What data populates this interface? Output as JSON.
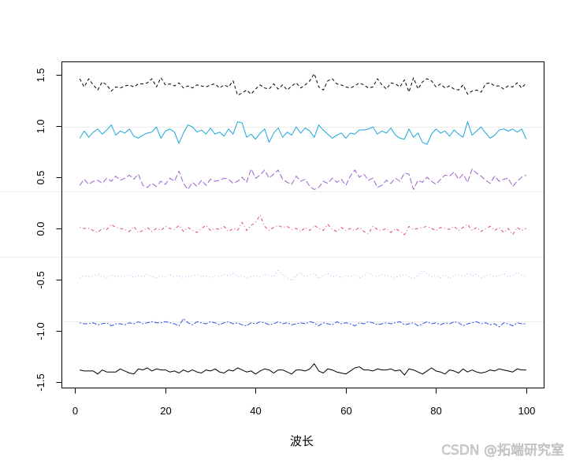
{
  "chart_data": {
    "type": "line",
    "xlabel": "波长",
    "xlim": [
      -2.96,
      103.96
    ],
    "ylim": [
      -1.556,
      1.625
    ],
    "x_ticks": [
      0,
      20,
      40,
      60,
      80,
      100
    ],
    "x_tick_labels": [
      "0",
      "20",
      "40",
      "60",
      "80",
      "100"
    ],
    "y_ticks": [
      -1.5,
      -1,
      -0.5,
      0,
      0.5,
      1,
      1.5
    ],
    "y_tick_labels": [
      "-1.5",
      "-1.0",
      "-0.5",
      "0.0",
      "0.5",
      "1.0",
      "1.5"
    ],
    "grid": false,
    "legend": "none",
    "x": [
      1,
      2,
      3,
      4,
      5,
      6,
      7,
      8,
      9,
      10,
      11,
      12,
      13,
      14,
      15,
      16,
      17,
      18,
      19,
      20,
      21,
      22,
      23,
      24,
      25,
      26,
      27,
      28,
      29,
      30,
      31,
      32,
      33,
      34,
      35,
      36,
      37,
      38,
      39,
      40,
      41,
      42,
      43,
      44,
      45,
      46,
      47,
      48,
      49,
      50,
      51,
      52,
      53,
      54,
      55,
      56,
      57,
      58,
      59,
      60,
      61,
      62,
      63,
      64,
      65,
      66,
      67,
      68,
      69,
      70,
      71,
      72,
      73,
      74,
      75,
      76,
      77,
      78,
      79,
      80,
      81,
      82,
      83,
      84,
      85,
      86,
      87,
      88,
      89,
      90,
      91,
      92,
      93,
      94,
      95,
      96,
      97,
      98,
      99,
      100
    ],
    "series": [
      {
        "color": "#000000",
        "line_style": "dashed",
        "values": [
          1.46,
          1.38,
          1.46,
          1.4,
          1.35,
          1.43,
          1.4,
          1.34,
          1.38,
          1.37,
          1.39,
          1.4,
          1.38,
          1.41,
          1.41,
          1.42,
          1.46,
          1.38,
          1.47,
          1.4,
          1.41,
          1.39,
          1.42,
          1.37,
          1.39,
          1.37,
          1.4,
          1.39,
          1.38,
          1.4,
          1.41,
          1.37,
          1.4,
          1.38,
          1.44,
          1.3,
          1.32,
          1.35,
          1.31,
          1.36,
          1.4,
          1.37,
          1.36,
          1.41,
          1.36,
          1.4,
          1.35,
          1.39,
          1.42,
          1.37,
          1.4,
          1.44,
          1.51,
          1.38,
          1.35,
          1.44,
          1.46,
          1.41,
          1.4,
          1.38,
          1.37,
          1.39,
          1.42,
          1.4,
          1.37,
          1.38,
          1.46,
          1.4,
          1.36,
          1.42,
          1.41,
          1.38,
          1.45,
          1.33,
          1.47,
          1.36,
          1.43,
          1.46,
          1.44,
          1.38,
          1.41,
          1.37,
          1.39,
          1.36,
          1.35,
          1.4,
          1.31,
          1.34,
          1.35,
          1.33,
          1.41,
          1.42,
          1.39,
          1.39,
          1.36,
          1.39,
          1.38,
          1.42,
          1.37,
          1.42
        ]
      },
      {
        "color": "#1aa6da",
        "line_style": "solid",
        "values": [
          0.88,
          0.95,
          0.89,
          0.94,
          0.97,
          0.92,
          0.96,
          1.01,
          0.91,
          0.95,
          0.93,
          0.97,
          0.9,
          0.88,
          0.91,
          0.93,
          0.94,
          0.99,
          0.88,
          0.95,
          0.97,
          0.94,
          0.83,
          0.93,
          1.01,
          0.99,
          0.94,
          0.96,
          0.92,
          0.98,
          0.92,
          0.94,
          0.9,
          0.97,
          0.92,
          1.04,
          1.03,
          0.89,
          0.92,
          0.87,
          0.93,
          0.97,
          0.84,
          0.93,
          0.98,
          0.89,
          0.94,
          0.91,
          0.99,
          0.93,
          0.98,
          0.95,
          0.89,
          1.01,
          0.96,
          0.92,
          0.88,
          0.91,
          0.93,
          0.88,
          0.93,
          0.92,
          0.96,
          0.96,
          0.97,
          0.99,
          0.92,
          0.95,
          0.93,
          0.98,
          0.91,
          0.88,
          0.87,
          0.97,
          0.89,
          0.93,
          0.84,
          0.82,
          0.92,
          0.97,
          0.93,
          0.95,
          0.9,
          0.96,
          0.92,
          0.89,
          1.04,
          0.91,
          0.95,
          0.99,
          0.93,
          0.88,
          0.91,
          0.96,
          0.97,
          0.95,
          0.97,
          0.94,
          0.97,
          0.87
        ]
      },
      {
        "color": "#9a62cf",
        "line_style": "longdash",
        "values": [
          0.42,
          0.48,
          0.43,
          0.46,
          0.47,
          0.44,
          0.49,
          0.46,
          0.51,
          0.47,
          0.49,
          0.52,
          0.48,
          0.53,
          0.42,
          0.4,
          0.44,
          0.41,
          0.46,
          0.43,
          0.49,
          0.46,
          0.56,
          0.44,
          0.38,
          0.45,
          0.41,
          0.47,
          0.42,
          0.48,
          0.46,
          0.47,
          0.49,
          0.48,
          0.44,
          0.46,
          0.5,
          0.45,
          0.58,
          0.49,
          0.52,
          0.57,
          0.49,
          0.53,
          0.57,
          0.48,
          0.45,
          0.43,
          0.51,
          0.46,
          0.48,
          0.41,
          0.38,
          0.4,
          0.46,
          0.44,
          0.49,
          0.45,
          0.48,
          0.42,
          0.51,
          0.57,
          0.5,
          0.53,
          0.47,
          0.49,
          0.4,
          0.42,
          0.47,
          0.44,
          0.49,
          0.46,
          0.54,
          0.53,
          0.38,
          0.47,
          0.45,
          0.5,
          0.46,
          0.43,
          0.48,
          0.52,
          0.51,
          0.55,
          0.48,
          0.53,
          0.45,
          0.58,
          0.54,
          0.51,
          0.47,
          0.44,
          0.51,
          0.46,
          0.48,
          0.49,
          0.41,
          0.46,
          0.5,
          0.52
        ]
      },
      {
        "color": "#e0467c",
        "line_style": "dotdash",
        "values": [
          0.01,
          0.0,
          0.0,
          -0.02,
          -0.04,
          0.0,
          -0.01,
          0.04,
          0.01,
          0.0,
          -0.01,
          -0.03,
          0.02,
          -0.04,
          -0.02,
          0.01,
          -0.03,
          0.0,
          -0.02,
          0.02,
          0.0,
          -0.01,
          0.03,
          -0.03,
          0.01,
          -0.02,
          -0.04,
          0.0,
          0.03,
          -0.02,
          0.0,
          -0.01,
          0.02,
          -0.03,
          0.0,
          -0.02,
          0.06,
          -0.02,
          0.03,
          0.06,
          0.13,
          0.02,
          -0.02,
          0.01,
          0.03,
          0.01,
          0.02,
          -0.01,
          0.0,
          -0.03,
          0.01,
          -0.02,
          0.03,
          0.0,
          -0.02,
          0.04,
          -0.01,
          -0.03,
          0.01,
          -0.02,
          0.0,
          -0.02,
          0.01,
          -0.03,
          -0.05,
          0.02,
          -0.01,
          -0.02,
          0.0,
          -0.04,
          0.0,
          -0.03,
          -0.06,
          0.02,
          -0.01,
          0.0,
          0.01,
          0.02,
          0.0,
          -0.02,
          0.01,
          0.0,
          -0.01,
          0.02,
          -0.02,
          0.01,
          0.04,
          -0.02,
          0.01,
          -0.03,
          0.0,
          0.02,
          -0.02,
          0.01,
          -0.04,
          0.0,
          -0.06,
          0.01,
          -0.02,
          0.0
        ]
      },
      {
        "color": "#a3b5f3",
        "line_style": "dotted",
        "values": [
          -0.48,
          -0.46,
          -0.47,
          -0.46,
          -0.45,
          -0.47,
          -0.48,
          -0.45,
          -0.47,
          -0.46,
          -0.47,
          -0.45,
          -0.48,
          -0.46,
          -0.47,
          -0.45,
          -0.47,
          -0.48,
          -0.46,
          -0.47,
          -0.45,
          -0.47,
          -0.46,
          -0.48,
          -0.47,
          -0.46,
          -0.45,
          -0.47,
          -0.46,
          -0.48,
          -0.46,
          -0.47,
          -0.45,
          -0.46,
          -0.44,
          -0.47,
          -0.46,
          -0.48,
          -0.47,
          -0.46,
          -0.47,
          -0.45,
          -0.46,
          -0.47,
          -0.41,
          -0.45,
          -0.48,
          -0.51,
          -0.46,
          -0.43,
          -0.47,
          -0.45,
          -0.44,
          -0.49,
          -0.46,
          -0.44,
          -0.47,
          -0.46,
          -0.48,
          -0.46,
          -0.47,
          -0.45,
          -0.48,
          -0.46,
          -0.43,
          -0.46,
          -0.47,
          -0.45,
          -0.46,
          -0.47,
          -0.48,
          -0.46,
          -0.45,
          -0.47,
          -0.49,
          -0.46,
          -0.41,
          -0.44,
          -0.47,
          -0.46,
          -0.48,
          -0.45,
          -0.49,
          -0.46,
          -0.45,
          -0.47,
          -0.44,
          -0.46,
          -0.45,
          -0.48,
          -0.46,
          -0.45,
          -0.47,
          -0.46,
          -0.44,
          -0.47,
          -0.46,
          -0.43,
          -0.45,
          -0.47
        ]
      },
      {
        "color": "#2f52e0",
        "line_style": "twodash",
        "values": [
          -0.92,
          -0.93,
          -0.93,
          -0.92,
          -0.94,
          -0.93,
          -0.92,
          -0.95,
          -0.93,
          -0.93,
          -0.94,
          -0.92,
          -0.93,
          -0.91,
          -0.93,
          -0.92,
          -0.91,
          -0.92,
          -0.92,
          -0.91,
          -0.92,
          -0.93,
          -0.95,
          -0.88,
          -0.92,
          -0.94,
          -0.91,
          -0.92,
          -0.93,
          -0.91,
          -0.92,
          -0.94,
          -0.92,
          -0.91,
          -0.93,
          -0.92,
          -0.94,
          -0.95,
          -0.92,
          -0.93,
          -0.91,
          -0.92,
          -0.94,
          -0.93,
          -0.91,
          -0.93,
          -0.92,
          -0.94,
          -0.93,
          -0.92,
          -0.93,
          -0.91,
          -0.92,
          -0.95,
          -0.92,
          -0.93,
          -0.94,
          -0.91,
          -0.93,
          -0.92,
          -0.93,
          -0.95,
          -0.92,
          -0.93,
          -0.91,
          -0.92,
          -0.94,
          -0.93,
          -0.92,
          -0.93,
          -0.92,
          -0.91,
          -0.94,
          -0.93,
          -0.92,
          -0.95,
          -0.93,
          -0.91,
          -0.93,
          -0.92,
          -0.94,
          -0.92,
          -0.93,
          -0.91,
          -0.92,
          -0.95,
          -0.93,
          -0.92,
          -0.91,
          -0.93,
          -0.92,
          -0.94,
          -0.93,
          -0.96,
          -0.92,
          -0.93,
          -0.95,
          -0.92,
          -0.93,
          -0.93
        ]
      },
      {
        "color": "#000000",
        "line_style": "solid",
        "values": [
          -1.38,
          -1.39,
          -1.39,
          -1.39,
          -1.42,
          -1.38,
          -1.4,
          -1.4,
          -1.4,
          -1.37,
          -1.39,
          -1.41,
          -1.42,
          -1.37,
          -1.38,
          -1.36,
          -1.39,
          -1.37,
          -1.38,
          -1.38,
          -1.4,
          -1.39,
          -1.41,
          -1.38,
          -1.4,
          -1.38,
          -1.4,
          -1.41,
          -1.38,
          -1.39,
          -1.37,
          -1.4,
          -1.41,
          -1.38,
          -1.39,
          -1.36,
          -1.38,
          -1.4,
          -1.39,
          -1.42,
          -1.39,
          -1.37,
          -1.38,
          -1.41,
          -1.38,
          -1.38,
          -1.4,
          -1.42,
          -1.38,
          -1.38,
          -1.39,
          -1.37,
          -1.32,
          -1.39,
          -1.41,
          -1.37,
          -1.38,
          -1.4,
          -1.41,
          -1.42,
          -1.39,
          -1.36,
          -1.35,
          -1.38,
          -1.38,
          -1.39,
          -1.37,
          -1.38,
          -1.38,
          -1.37,
          -1.39,
          -1.38,
          -1.43,
          -1.37,
          -1.38,
          -1.4,
          -1.42,
          -1.39,
          -1.36,
          -1.39,
          -1.4,
          -1.42,
          -1.38,
          -1.39,
          -1.41,
          -1.37,
          -1.4,
          -1.38,
          -1.4,
          -1.41,
          -1.4,
          -1.38,
          -1.39,
          -1.37,
          -1.38,
          -1.39,
          -1.4,
          -1.37,
          -1.38,
          -1.38
        ]
      }
    ]
  },
  "watermark": "CSDN @拓端研究室"
}
